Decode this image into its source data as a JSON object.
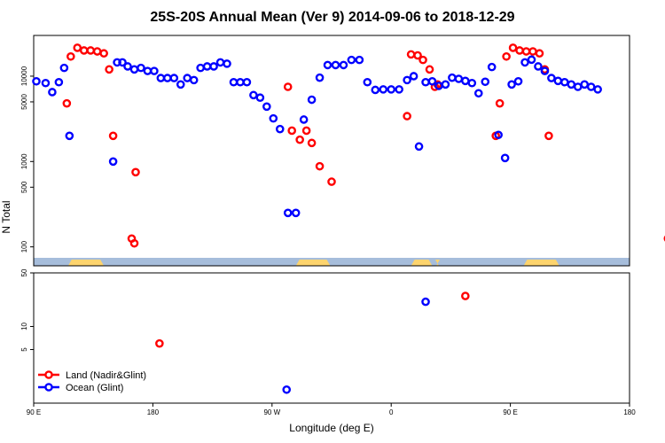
{
  "chart_data": {
    "type": "scatter",
    "title": "25S-20S Annual Mean (Ver 9)   2014-09-06 to 2018-12-29",
    "xlabel": "Longitude (deg E)",
    "x_ticks": [
      {
        "value": 90,
        "label": "90 E"
      },
      {
        "value": 180,
        "label": "180"
      },
      {
        "value": 270,
        "label": "90 W"
      },
      {
        "value": 360,
        "label": "0"
      },
      {
        "value": 450,
        "label": "90 E"
      },
      {
        "value": 540,
        "label": "180"
      }
    ],
    "xlim": [
      90,
      540
    ],
    "top_panel": {
      "ylabel": "N Total",
      "yscale": "log",
      "ylim": [
        60,
        30000
      ],
      "y_ticks": [
        {
          "value": 100,
          "label": "100"
        },
        {
          "value": 500,
          "label": "500"
        },
        {
          "value": 1000,
          "label": "1000"
        },
        {
          "value": 5000,
          "label": "5000"
        },
        {
          "value": 10000,
          "label": "10000"
        }
      ],
      "landmask_colors": {
        "ocean": "#a6bddb",
        "land": "#fdd46e"
      },
      "series": [
        {
          "name": "Land (Nadir&Glint)",
          "color": "#ff0000",
          "x": [
            115,
            118,
            123,
            128,
            133,
            138,
            143,
            147,
            150,
            164,
            166,
            167,
            282,
            285,
            291,
            296,
            300,
            306,
            315,
            372,
            375,
            380,
            384,
            389,
            393,
            395,
            439,
            442,
            447,
            452,
            457,
            462,
            467,
            472,
            476,
            479,
            569,
            571
          ],
          "y": [
            4800,
            17000,
            21500,
            20000,
            20000,
            19500,
            18500,
            12000,
            2000,
            125,
            110,
            750,
            7500,
            2300,
            1800,
            2300,
            1650,
            880,
            580,
            3400,
            18000,
            17500,
            15500,
            12000,
            7500,
            8000,
            2000,
            4800,
            17000,
            21500,
            20000,
            19500,
            19500,
            18500,
            12000,
            2000,
            125,
            110
          ]
        },
        {
          "name": "Ocean (Glint)",
          "color": "#0000ff",
          "x": [
            92,
            99,
            104,
            109,
            113,
            117,
            150,
            153,
            157,
            161,
            166,
            171,
            176,
            181,
            186,
            191,
            196,
            201,
            206,
            211,
            216,
            221,
            226,
            231,
            236,
            241,
            246,
            251,
            256,
            261,
            266,
            271,
            276,
            282,
            288,
            294,
            300,
            306,
            312,
            318,
            324,
            330,
            336,
            342,
            348,
            354,
            360,
            366,
            372,
            377,
            381,
            386,
            391,
            396,
            401,
            406,
            411,
            416,
            421,
            426,
            431,
            436,
            441,
            446,
            451,
            456,
            461,
            466,
            471,
            476,
            481,
            486,
            491,
            496,
            501,
            506,
            511,
            516
          ],
          "y": [
            8700,
            8300,
            6500,
            8500,
            12500,
            2000,
            1000,
            14500,
            14500,
            13000,
            12000,
            12500,
            11500,
            11500,
            9500,
            9500,
            9500,
            8000,
            9500,
            9000,
            12500,
            13000,
            13000,
            14500,
            14000,
            8500,
            8500,
            8500,
            6000,
            5600,
            4400,
            3200,
            2400,
            250,
            250,
            3100,
            5300,
            9600,
            13500,
            13500,
            13500,
            15500,
            15500,
            8500,
            6900,
            7000,
            7000,
            7000,
            9000,
            10000,
            1500,
            8500,
            8700,
            7700,
            8000,
            9600,
            9300,
            8800,
            8300,
            6300,
            8600,
            12800,
            2050,
            1100,
            8000,
            8700,
            14500,
            15600,
            13000,
            11500,
            9500,
            8800,
            8500,
            8000,
            7500,
            8000,
            7500,
            7000
          ]
        }
      ]
    },
    "bottom_panel": {
      "yscale": "log",
      "ylim": [
        1,
        50
      ],
      "y_ticks": [
        {
          "value": 5,
          "label": "5"
        },
        {
          "value": 10,
          "label": "10"
        },
        {
          "value": 50,
          "label": "50"
        }
      ],
      "series": [
        {
          "name": "Land (Nadir&Glint)",
          "color": "#ff0000",
          "x": [
            185,
            416
          ],
          "y": [
            6,
            25
          ]
        },
        {
          "name": "Ocean (Glint)",
          "color": "#0000ff",
          "x": [
            281,
            386
          ],
          "y": [
            1.5,
            21
          ]
        }
      ]
    },
    "legend": {
      "position": "bottom-left",
      "entries": [
        {
          "label": "Land (Nadir&Glint)",
          "color": "#ff0000"
        },
        {
          "label": "Ocean (Glint)",
          "color": "#0000ff"
        }
      ]
    }
  }
}
